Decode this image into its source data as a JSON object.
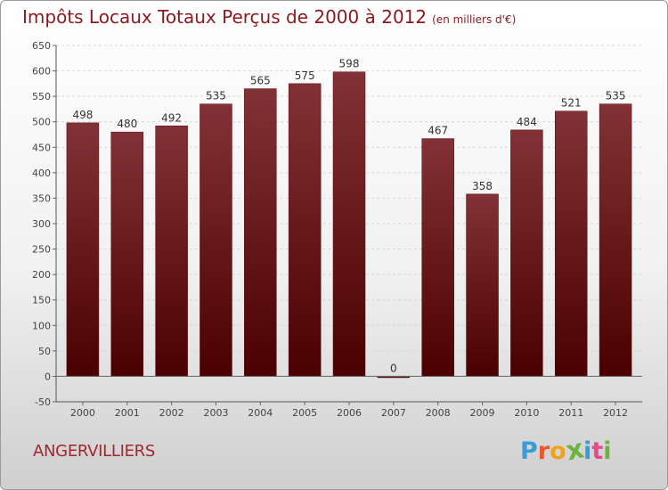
{
  "title": "Impôts Locaux Totaux Perçus de 2000 à 2012",
  "subtitle": "(en milliers d'€)",
  "town": "ANGERVILLIERS",
  "logo": {
    "letters": [
      "P",
      "r",
      "o",
      "x",
      "i",
      "t",
      "i"
    ],
    "colors": [
      "#3a9bd5",
      "#e8572a",
      "#f2a21a",
      "#6cb33f",
      "#3a9bd5",
      "#e84b8a",
      "#6cb33f"
    ]
  },
  "chart_data": {
    "type": "bar",
    "categories": [
      "2000",
      "2001",
      "2002",
      "2003",
      "2004",
      "2005",
      "2006",
      "2007",
      "2008",
      "2009",
      "2010",
      "2011",
      "2012"
    ],
    "values": [
      498,
      480,
      492,
      535,
      565,
      575,
      598,
      0,
      467,
      358,
      484,
      521,
      535
    ],
    "title": "Impôts Locaux Totaux Perçus de 2000 à 2012",
    "xlabel": "",
    "ylabel": "",
    "ylim": [
      -50,
      650
    ],
    "yticks": [
      -50,
      0,
      50,
      100,
      150,
      200,
      250,
      300,
      350,
      400,
      450,
      500,
      550,
      600,
      650
    ],
    "grid": true,
    "bar_color": "#7a1e22"
  }
}
